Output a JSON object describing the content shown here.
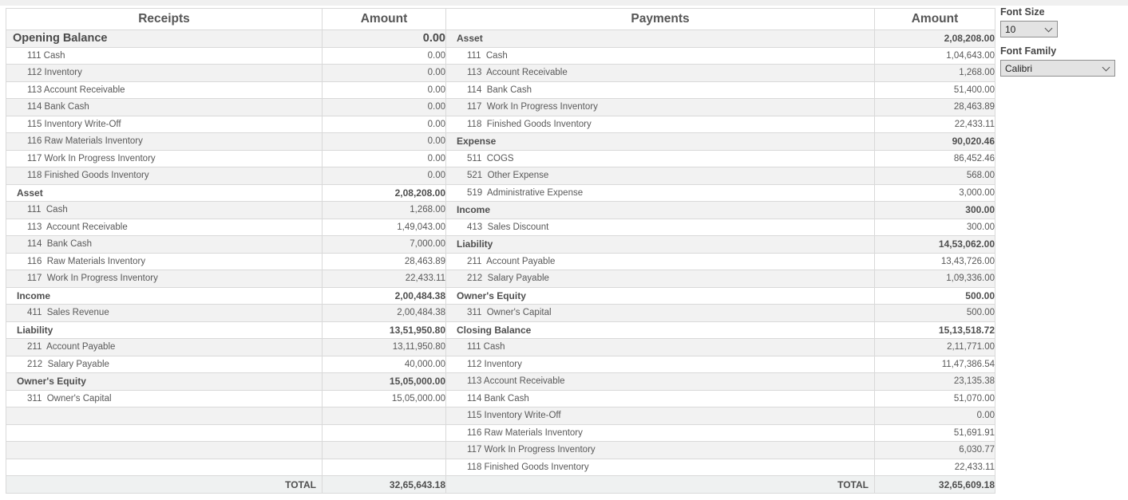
{
  "table": {
    "headers": {
      "receipts": "Receipts",
      "amount_left": "Amount",
      "payments": "Payments",
      "amount_right": "Amount"
    },
    "rows": [
      {
        "left": {
          "label": "Opening Balance",
          "amount": "0.00",
          "type": "top"
        },
        "right": {
          "label": "Asset",
          "amount": "2,08,208.00",
          "type": "section"
        }
      },
      {
        "left": {
          "label": "111 Cash",
          "amount": "0.00",
          "type": "item"
        },
        "right": {
          "label": "111  Cash",
          "amount": "1,04,643.00",
          "type": "item"
        }
      },
      {
        "left": {
          "label": "112 Inventory",
          "amount": "0.00",
          "type": "item"
        },
        "right": {
          "label": "113  Account Receivable",
          "amount": "1,268.00",
          "type": "item"
        }
      },
      {
        "left": {
          "label": "113 Account Receivable",
          "amount": "0.00",
          "type": "item"
        },
        "right": {
          "label": "114  Bank Cash",
          "amount": "51,400.00",
          "type": "item"
        }
      },
      {
        "left": {
          "label": "114 Bank Cash",
          "amount": "0.00",
          "type": "item"
        },
        "right": {
          "label": "117  Work In Progress Inventory",
          "amount": "28,463.89",
          "type": "item"
        }
      },
      {
        "left": {
          "label": "115 Inventory Write-Off",
          "amount": "0.00",
          "type": "item"
        },
        "right": {
          "label": "118  Finished Goods Inventory",
          "amount": "22,433.11",
          "type": "item"
        }
      },
      {
        "left": {
          "label": "116 Raw Materials Inventory",
          "amount": "0.00",
          "type": "item"
        },
        "right": {
          "label": "Expense",
          "amount": "90,020.46",
          "type": "section"
        }
      },
      {
        "left": {
          "label": "117 Work In Progress Inventory",
          "amount": "0.00",
          "type": "item"
        },
        "right": {
          "label": "511  COGS",
          "amount": "86,452.46",
          "type": "item"
        }
      },
      {
        "left": {
          "label": "118 Finished Goods Inventory",
          "amount": "0.00",
          "type": "item"
        },
        "right": {
          "label": "521  Other Expense",
          "amount": "568.00",
          "type": "item"
        }
      },
      {
        "left": {
          "label": "Asset",
          "amount": "2,08,208.00",
          "type": "section"
        },
        "right": {
          "label": "519  Administrative Expense",
          "amount": "3,000.00",
          "type": "item"
        }
      },
      {
        "left": {
          "label": "111  Cash",
          "amount": "1,268.00",
          "type": "item"
        },
        "right": {
          "label": "Income",
          "amount": "300.00",
          "type": "section"
        }
      },
      {
        "left": {
          "label": "113  Account Receivable",
          "amount": "1,49,043.00",
          "type": "item"
        },
        "right": {
          "label": "413  Sales Discount",
          "amount": "300.00",
          "type": "item"
        }
      },
      {
        "left": {
          "label": "114  Bank Cash",
          "amount": "7,000.00",
          "type": "item"
        },
        "right": {
          "label": "Liability",
          "amount": "14,53,062.00",
          "type": "section"
        }
      },
      {
        "left": {
          "label": "116  Raw Materials Inventory",
          "amount": "28,463.89",
          "type": "item"
        },
        "right": {
          "label": "211  Account Payable",
          "amount": "13,43,726.00",
          "type": "item"
        }
      },
      {
        "left": {
          "label": "117  Work In Progress Inventory",
          "amount": "22,433.11",
          "type": "item"
        },
        "right": {
          "label": "212  Salary Payable",
          "amount": "1,09,336.00",
          "type": "item"
        }
      },
      {
        "left": {
          "label": "Income",
          "amount": "2,00,484.38",
          "type": "section"
        },
        "right": {
          "label": "Owner's Equity",
          "amount": "500.00",
          "type": "section"
        }
      },
      {
        "left": {
          "label": "411  Sales Revenue",
          "amount": "2,00,484.38",
          "type": "item"
        },
        "right": {
          "label": "311  Owner's Capital",
          "amount": "500.00",
          "type": "item"
        }
      },
      {
        "left": {
          "label": "Liability",
          "amount": "13,51,950.80",
          "type": "section"
        },
        "right": {
          "label": "Closing Balance",
          "amount": "15,13,518.72",
          "type": "section"
        }
      },
      {
        "left": {
          "label": "211  Account Payable",
          "amount": "13,11,950.80",
          "type": "item"
        },
        "right": {
          "label": "111 Cash",
          "amount": "2,11,771.00",
          "type": "item"
        }
      },
      {
        "left": {
          "label": "212  Salary Payable",
          "amount": "40,000.00",
          "type": "item"
        },
        "right": {
          "label": "112 Inventory",
          "amount": "11,47,386.54",
          "type": "item"
        }
      },
      {
        "left": {
          "label": "Owner's Equity",
          "amount": "15,05,000.00",
          "type": "section"
        },
        "right": {
          "label": "113 Account Receivable",
          "amount": "23,135.38",
          "type": "item"
        }
      },
      {
        "left": {
          "label": "311  Owner's Capital",
          "amount": "15,05,000.00",
          "type": "item"
        },
        "right": {
          "label": "114 Bank Cash",
          "amount": "51,070.00",
          "type": "item"
        }
      },
      {
        "left": {
          "label": "",
          "amount": "",
          "type": "empty"
        },
        "right": {
          "label": "115 Inventory Write-Off",
          "amount": "0.00",
          "type": "item"
        }
      },
      {
        "left": {
          "label": "",
          "amount": "",
          "type": "empty"
        },
        "right": {
          "label": "116 Raw Materials Inventory",
          "amount": "51,691.91",
          "type": "item"
        }
      },
      {
        "left": {
          "label": "",
          "amount": "",
          "type": "empty"
        },
        "right": {
          "label": "117 Work In Progress Inventory",
          "amount": "6,030.77",
          "type": "item"
        }
      },
      {
        "left": {
          "label": "",
          "amount": "",
          "type": "empty"
        },
        "right": {
          "label": "118 Finished Goods Inventory",
          "amount": "22,433.11",
          "type": "item"
        }
      }
    ],
    "total": {
      "left_label": "TOTAL",
      "left_amount": "32,65,643.18",
      "right_label": "TOTAL",
      "right_amount": "32,65,609.18"
    }
  },
  "panel": {
    "font_size_label": "Font Size",
    "font_size_value": "10",
    "font_family_label": "Font Family",
    "font_family_value": "Calibri"
  },
  "colors": {
    "row_alt": "#f2f2f2",
    "border": "#d9d9d9",
    "text": "#595959",
    "bold_text": "#4f4f4f",
    "top_strip": "#f0f0f0",
    "total_row_bg": "#eff1f1",
    "select_bg": "#e3e3e3",
    "select_border": "#8f8f8f"
  }
}
